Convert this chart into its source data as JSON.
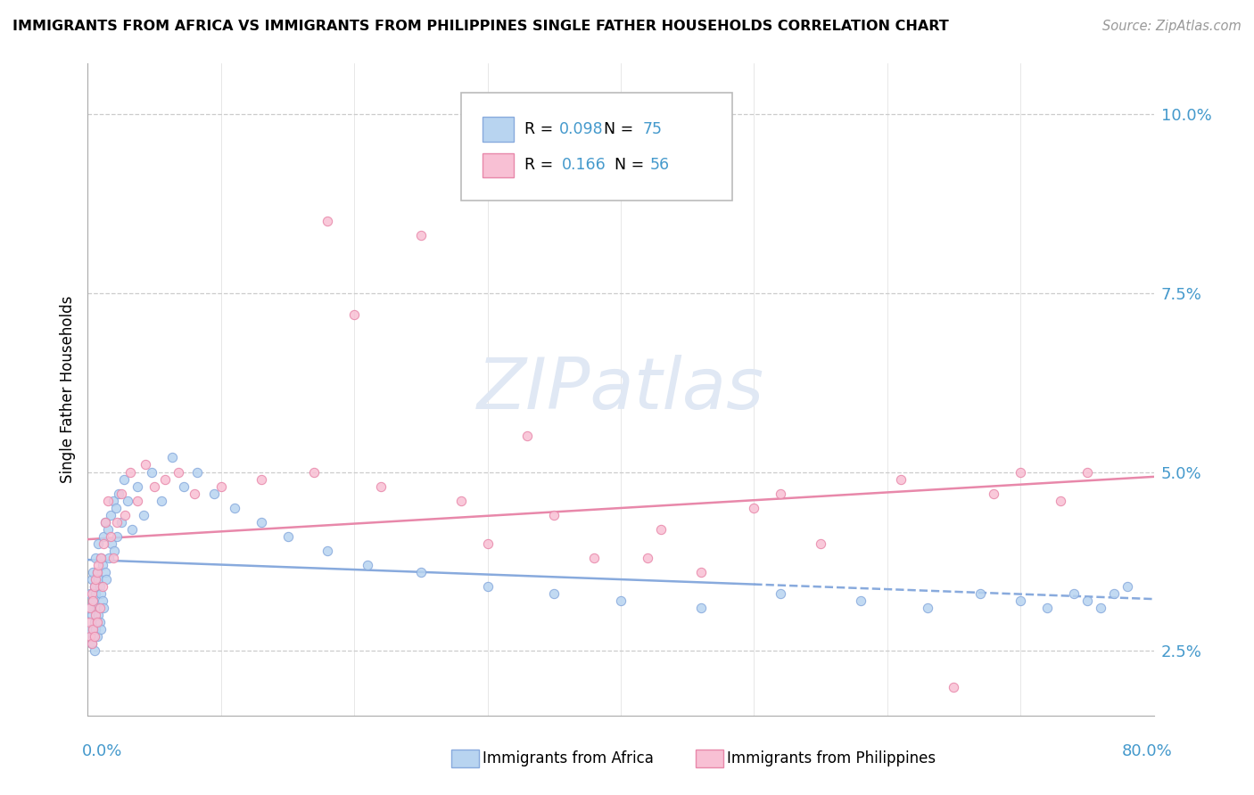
{
  "title": "IMMIGRANTS FROM AFRICA VS IMMIGRANTS FROM PHILIPPINES SINGLE FATHER HOUSEHOLDS CORRELATION CHART",
  "source": "Source: ZipAtlas.com",
  "ylabel": "Single Father Households",
  "xlim": [
    0.0,
    0.8
  ],
  "ylim": [
    0.016,
    0.107
  ],
  "yticks": [
    0.025,
    0.05,
    0.075,
    0.1
  ],
  "ytick_labels": [
    "2.5%",
    "5.0%",
    "7.5%",
    "10.0%"
  ],
  "africa_name": "Immigrants from Africa",
  "africa_R": "0.098",
  "africa_N": "75",
  "phil_name": "Immigrants from Philippines",
  "phil_R": "0.166",
  "phil_N": "56",
  "africa_scatter_face": "#b8d4f0",
  "africa_scatter_edge": "#88aadd",
  "africa_line_color": "#88aadd",
  "phil_scatter_face": "#f8c0d4",
  "phil_scatter_edge": "#e888aa",
  "phil_line_color": "#e888aa",
  "watermark": "ZIPatlas",
  "background": "#ffffff",
  "grid_color": "#cccccc",
  "tick_color": "#4499cc",
  "africa_x": [
    0.001,
    0.002,
    0.002,
    0.003,
    0.003,
    0.003,
    0.004,
    0.004,
    0.004,
    0.005,
    0.005,
    0.005,
    0.006,
    0.006,
    0.006,
    0.007,
    0.007,
    0.007,
    0.008,
    0.008,
    0.008,
    0.009,
    0.009,
    0.01,
    0.01,
    0.01,
    0.011,
    0.011,
    0.012,
    0.012,
    0.013,
    0.013,
    0.014,
    0.015,
    0.016,
    0.017,
    0.018,
    0.019,
    0.02,
    0.021,
    0.022,
    0.023,
    0.025,
    0.027,
    0.03,
    0.033,
    0.037,
    0.042,
    0.048,
    0.055,
    0.063,
    0.072,
    0.082,
    0.095,
    0.11,
    0.13,
    0.15,
    0.18,
    0.21,
    0.25,
    0.3,
    0.35,
    0.4,
    0.46,
    0.52,
    0.58,
    0.63,
    0.67,
    0.7,
    0.72,
    0.74,
    0.75,
    0.76,
    0.77,
    0.78
  ],
  "africa_y": [
    0.031,
    0.028,
    0.033,
    0.026,
    0.03,
    0.035,
    0.027,
    0.032,
    0.036,
    0.025,
    0.029,
    0.034,
    0.028,
    0.033,
    0.038,
    0.027,
    0.031,
    0.036,
    0.03,
    0.035,
    0.04,
    0.029,
    0.034,
    0.028,
    0.033,
    0.038,
    0.032,
    0.037,
    0.041,
    0.031,
    0.036,
    0.043,
    0.035,
    0.042,
    0.038,
    0.044,
    0.04,
    0.046,
    0.039,
    0.045,
    0.041,
    0.047,
    0.043,
    0.049,
    0.046,
    0.042,
    0.048,
    0.044,
    0.05,
    0.046,
    0.052,
    0.048,
    0.05,
    0.047,
    0.045,
    0.043,
    0.041,
    0.039,
    0.037,
    0.036,
    0.034,
    0.033,
    0.032,
    0.031,
    0.033,
    0.032,
    0.031,
    0.033,
    0.032,
    0.031,
    0.033,
    0.032,
    0.031,
    0.033,
    0.034
  ],
  "phil_x": [
    0.001,
    0.002,
    0.002,
    0.003,
    0.003,
    0.004,
    0.004,
    0.005,
    0.005,
    0.006,
    0.006,
    0.007,
    0.007,
    0.008,
    0.009,
    0.01,
    0.011,
    0.012,
    0.013,
    0.015,
    0.017,
    0.019,
    0.022,
    0.025,
    0.028,
    0.032,
    0.037,
    0.043,
    0.05,
    0.058,
    0.068,
    0.08,
    0.1,
    0.13,
    0.17,
    0.22,
    0.28,
    0.35,
    0.43,
    0.52,
    0.61,
    0.68,
    0.73,
    0.75,
    0.18,
    0.25,
    0.3,
    0.38,
    0.46,
    0.55,
    0.2,
    0.33,
    0.42,
    0.5,
    0.65,
    0.7
  ],
  "phil_y": [
    0.029,
    0.031,
    0.027,
    0.033,
    0.026,
    0.032,
    0.028,
    0.034,
    0.027,
    0.035,
    0.03,
    0.036,
    0.029,
    0.037,
    0.031,
    0.038,
    0.034,
    0.04,
    0.043,
    0.046,
    0.041,
    0.038,
    0.043,
    0.047,
    0.044,
    0.05,
    0.046,
    0.051,
    0.048,
    0.049,
    0.05,
    0.047,
    0.048,
    0.049,
    0.05,
    0.048,
    0.046,
    0.044,
    0.042,
    0.047,
    0.049,
    0.047,
    0.046,
    0.05,
    0.085,
    0.083,
    0.04,
    0.038,
    0.036,
    0.04,
    0.072,
    0.055,
    0.038,
    0.045,
    0.02,
    0.05
  ]
}
